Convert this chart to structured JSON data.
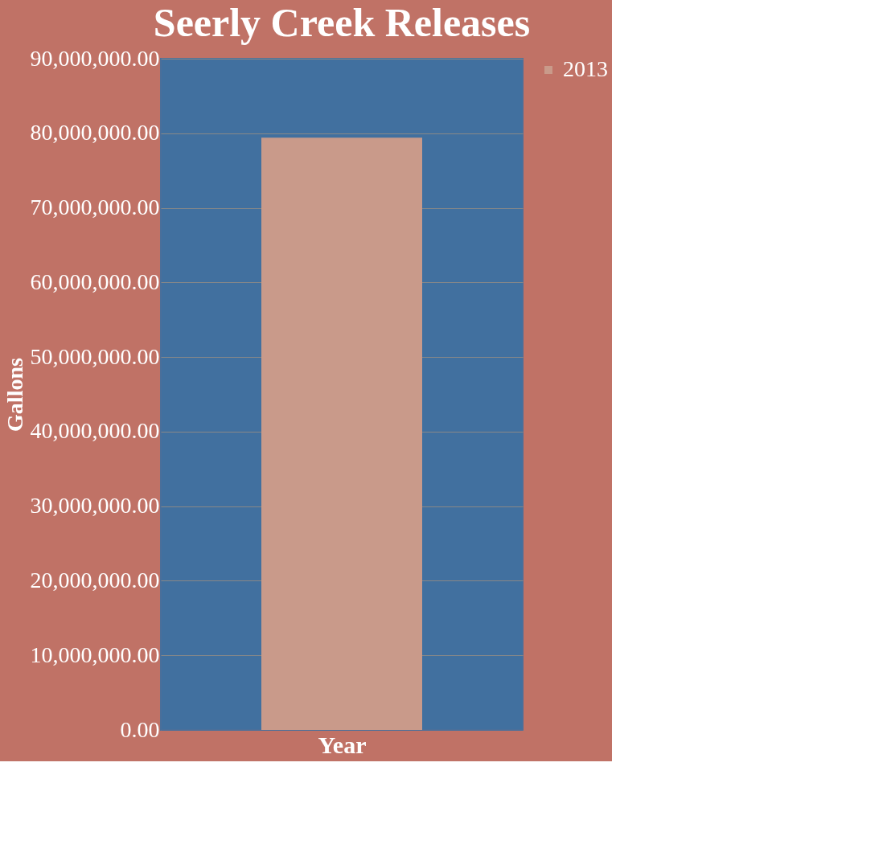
{
  "chart_data": {
    "type": "bar",
    "title": "Seerly Creek Releases",
    "xlabel": "Year",
    "ylabel": "Gallons",
    "categories": [
      null
    ],
    "series": [
      {
        "name": "2013",
        "color": "#c99a8a",
        "values": [
          79400000
        ]
      }
    ],
    "ylim": [
      0,
      90000000
    ],
    "yticks": [
      {
        "value": 0,
        "label": "0.00"
      },
      {
        "value": 10000000,
        "label": "10,000,000.00"
      },
      {
        "value": 20000000,
        "label": "20,000,000.00"
      },
      {
        "value": 30000000,
        "label": "30,000,000.00"
      },
      {
        "value": 40000000,
        "label": "40,000,000.00"
      },
      {
        "value": 50000000,
        "label": "50,000,000.00"
      },
      {
        "value": 60000000,
        "label": "60,000,000.00"
      },
      {
        "value": 70000000,
        "label": "70,000,000.00"
      },
      {
        "value": 80000000,
        "label": "80,000,000.00"
      },
      {
        "value": 90000000,
        "label": "90,000,000.00"
      }
    ],
    "grid": "y",
    "legend": "right"
  }
}
